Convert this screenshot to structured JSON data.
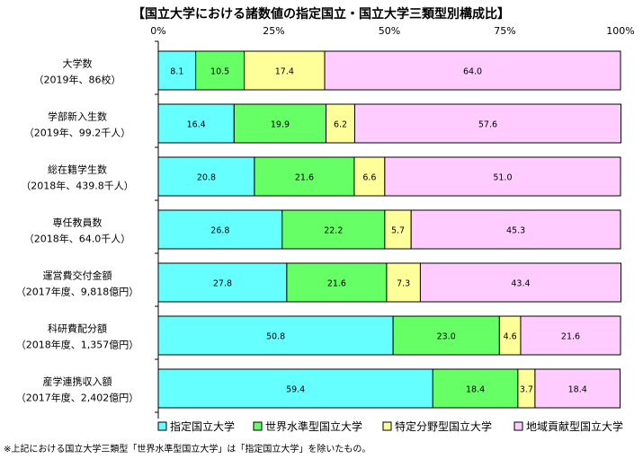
{
  "chart_data": {
    "type": "bar",
    "orientation": "horizontal",
    "stacked": true,
    "title": "【国立大学における諸数値の指定国立・国立大学三類型別構成比】",
    "x_ticks": [
      "0%",
      "25%",
      "50%",
      "75%",
      "100%"
    ],
    "xlim": [
      0,
      100
    ],
    "categories": [
      {
        "name": "大学数",
        "sub": "（2019年、86校）"
      },
      {
        "name": "学部新入生数",
        "sub": "（2019年、99.2千人）"
      },
      {
        "name": "総在籍学生数",
        "sub": "（2018年、439.8千人）"
      },
      {
        "name": "専任教員数",
        "sub": "（2018年、64.0千人）"
      },
      {
        "name": "運営費交付金額",
        "sub": "（2017年度、9,818億円）"
      },
      {
        "name": "科研費配分額",
        "sub": "（2018年度、1,357億円）"
      },
      {
        "name": "産学連携収入額",
        "sub": "（2017年度、2,402億円）"
      }
    ],
    "series": [
      {
        "name": "指定国立大学",
        "color": "#66FFFF",
        "values": [
          8.1,
          16.4,
          20.8,
          26.8,
          27.8,
          50.8,
          59.4
        ]
      },
      {
        "name": "世界水準型国立大学",
        "color": "#66FF66",
        "values": [
          10.5,
          19.9,
          21.6,
          22.2,
          21.6,
          23.0,
          18.4
        ]
      },
      {
        "name": "特定分野型国立大学",
        "color": "#FFFF99",
        "values": [
          17.4,
          6.2,
          6.6,
          5.7,
          7.3,
          4.6,
          3.7
        ]
      },
      {
        "name": "地域貢献型国立大学",
        "color": "#FFCCFF",
        "values": [
          64.0,
          57.6,
          51.0,
          45.3,
          43.4,
          21.6,
          18.4
        ]
      }
    ],
    "legend": "bottom",
    "grid": false
  },
  "footnote": "※上記における国立大学三類型「世界水準型国立大学」は「指定国立大学」を除いたもの。"
}
